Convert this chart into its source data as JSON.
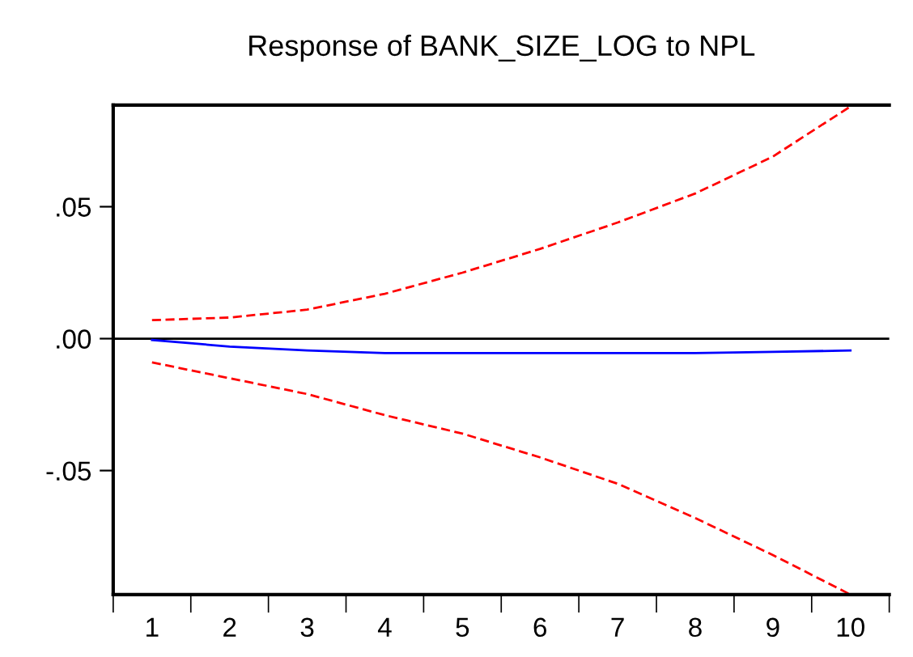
{
  "chart_data": {
    "type": "line",
    "title": "Response of BANK_SIZE_LOG to NPL",
    "categories": [
      "1",
      "2",
      "3",
      "4",
      "5",
      "6",
      "7",
      "8",
      "9",
      "10"
    ],
    "ylim": [
      -0.097,
      0.0885
    ],
    "yticks": [
      {
        "value": 0.05,
        "label": ".05"
      },
      {
        "value": 0,
        "label": ".00"
      },
      {
        "value": -0.05,
        "label": "-.05"
      }
    ],
    "grid": false,
    "legend": false,
    "marker": "none",
    "series": [
      {
        "color": "#0000ff",
        "line_style": "solid",
        "values": [
          -0.0005,
          -0.003,
          -0.0045,
          -0.0055,
          -0.0055,
          -0.0055,
          -0.0055,
          -0.0055,
          -0.005,
          -0.0045
        ]
      },
      {
        "color": "#ff0000",
        "line_style": "dashed",
        "values": [
          0.007,
          0.008,
          0.011,
          0.017,
          0.025,
          0.034,
          0.044,
          0.055,
          0.069,
          0.088
        ]
      },
      {
        "color": "#ff0000",
        "line_style": "dashed",
        "values": [
          -0.009,
          -0.015,
          -0.021,
          -0.029,
          -0.036,
          -0.045,
          -0.055,
          -0.068,
          -0.082,
          -0.097
        ]
      }
    ],
    "ref_lines": [
      {
        "axis": "y",
        "value": 0,
        "color": "#000000",
        "line_style": "solid"
      }
    ]
  }
}
